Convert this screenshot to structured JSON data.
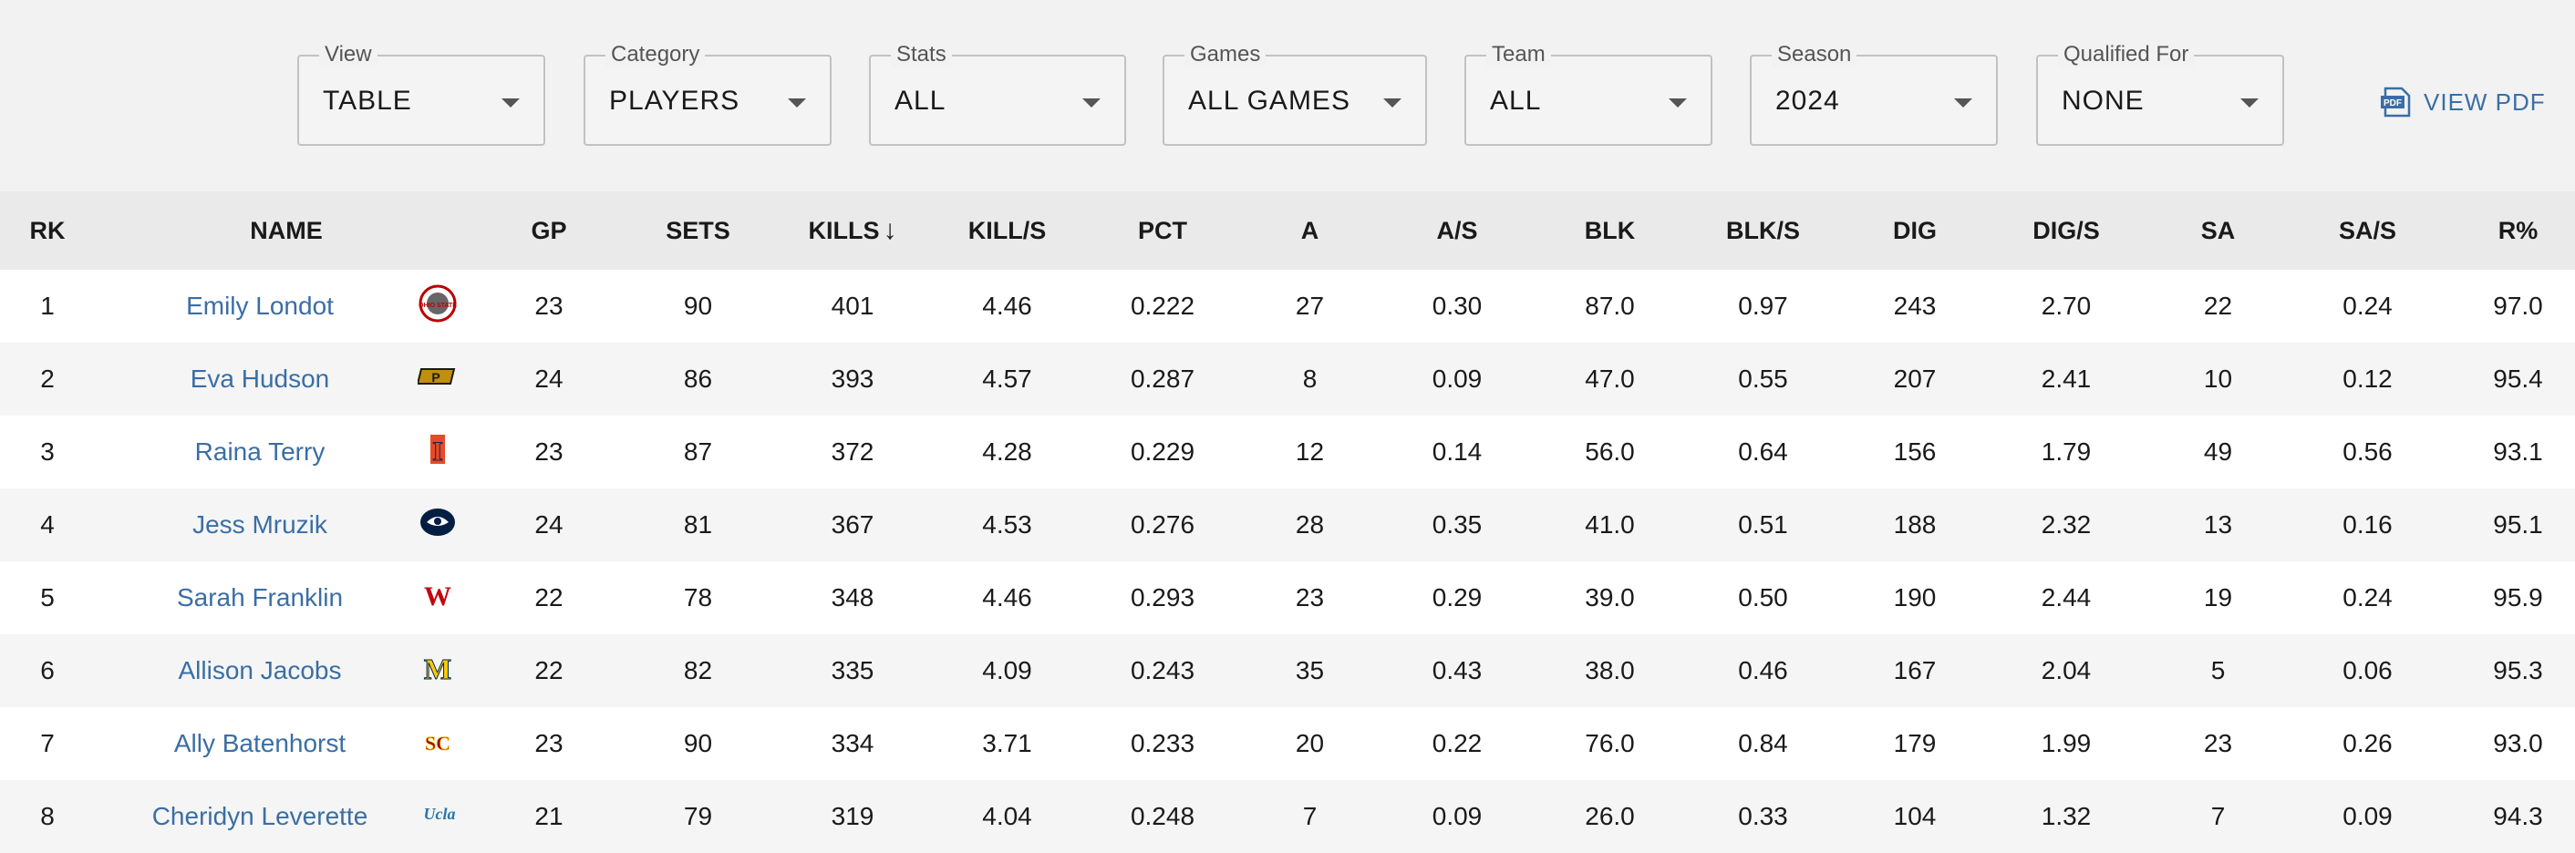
{
  "filters": [
    {
      "label": "View",
      "value": "TABLE"
    },
    {
      "label": "Category",
      "value": "PLAYERS"
    },
    {
      "label": "Stats",
      "value": "ALL"
    },
    {
      "label": "Games",
      "value": "ALL GAMES"
    },
    {
      "label": "Team",
      "value": "ALL"
    },
    {
      "label": "Season",
      "value": "2024"
    },
    {
      "label": "Qualified For",
      "value": "NONE"
    }
  ],
  "view_pdf": {
    "label": "VIEW PDF",
    "icon": "pdf-icon",
    "icon_text": "PDF"
  },
  "table": {
    "headers": {
      "rk": "RK",
      "name": "NAME",
      "gp": "GP",
      "sets": "SETS",
      "kills": "KILLS",
      "kill_s": "KILL/S",
      "pct": "PCT",
      "a": "A",
      "a_s": "A/S",
      "blk": "BLK",
      "blk_s": "BLK/S",
      "dig": "DIG",
      "dig_s": "DIG/S",
      "sa": "SA",
      "sa_s": "SA/S",
      "r_pct": "R%"
    },
    "sort": {
      "column": "KILLS",
      "direction": "descending",
      "icon": "arrow-down-icon"
    },
    "rows": [
      {
        "rk": "1",
        "name": "Emily Londot",
        "team_logo": "ohio-state-logo",
        "gp": "23",
        "sets": "90",
        "kills": "401",
        "kill_s": "4.46",
        "pct": "0.222",
        "a": "27",
        "a_s": "0.30",
        "blk": "87.0",
        "blk_s": "0.97",
        "dig": "243",
        "dig_s": "2.70",
        "sa": "22",
        "sa_s": "0.24",
        "r_pct": "97.0"
      },
      {
        "rk": "2",
        "name": "Eva Hudson",
        "team_logo": "purdue-logo",
        "gp": "24",
        "sets": "86",
        "kills": "393",
        "kill_s": "4.57",
        "pct": "0.287",
        "a": "8",
        "a_s": "0.09",
        "blk": "47.0",
        "blk_s": "0.55",
        "dig": "207",
        "dig_s": "2.41",
        "sa": "10",
        "sa_s": "0.12",
        "r_pct": "95.4"
      },
      {
        "rk": "3",
        "name": "Raina Terry",
        "team_logo": "illinois-logo",
        "gp": "23",
        "sets": "87",
        "kills": "372",
        "kill_s": "4.28",
        "pct": "0.229",
        "a": "12",
        "a_s": "0.14",
        "blk": "56.0",
        "blk_s": "0.64",
        "dig": "156",
        "dig_s": "1.79",
        "sa": "49",
        "sa_s": "0.56",
        "r_pct": "93.1"
      },
      {
        "rk": "4",
        "name": "Jess Mruzik",
        "team_logo": "penn-state-logo",
        "gp": "24",
        "sets": "81",
        "kills": "367",
        "kill_s": "4.53",
        "pct": "0.276",
        "a": "28",
        "a_s": "0.35",
        "blk": "41.0",
        "blk_s": "0.51",
        "dig": "188",
        "dig_s": "2.32",
        "sa": "13",
        "sa_s": "0.16",
        "r_pct": "95.1"
      },
      {
        "rk": "5",
        "name": "Sarah Franklin",
        "team_logo": "wisconsin-logo",
        "gp": "22",
        "sets": "78",
        "kills": "348",
        "kill_s": "4.46",
        "pct": "0.293",
        "a": "23",
        "a_s": "0.29",
        "blk": "39.0",
        "blk_s": "0.50",
        "dig": "190",
        "dig_s": "2.44",
        "sa": "19",
        "sa_s": "0.24",
        "r_pct": "95.9"
      },
      {
        "rk": "6",
        "name": "Allison Jacobs",
        "team_logo": "michigan-logo",
        "gp": "22",
        "sets": "82",
        "kills": "335",
        "kill_s": "4.09",
        "pct": "0.243",
        "a": "35",
        "a_s": "0.43",
        "blk": "38.0",
        "blk_s": "0.46",
        "dig": "167",
        "dig_s": "2.04",
        "sa": "5",
        "sa_s": "0.06",
        "r_pct": "95.3"
      },
      {
        "rk": "7",
        "name": "Ally Batenhorst",
        "team_logo": "usc-logo",
        "gp": "23",
        "sets": "90",
        "kills": "334",
        "kill_s": "3.71",
        "pct": "0.233",
        "a": "20",
        "a_s": "0.22",
        "blk": "76.0",
        "blk_s": "0.84",
        "dig": "179",
        "dig_s": "1.99",
        "sa": "23",
        "sa_s": "0.26",
        "r_pct": "93.0"
      },
      {
        "rk": "8",
        "name": "Cheridyn Leverette",
        "team_logo": "ucla-logo",
        "gp": "21",
        "sets": "79",
        "kills": "319",
        "kill_s": "4.04",
        "pct": "0.248",
        "a": "7",
        "a_s": "0.09",
        "blk": "26.0",
        "blk_s": "0.33",
        "dig": "104",
        "dig_s": "1.32",
        "sa": "7",
        "sa_s": "0.09",
        "r_pct": "94.3"
      }
    ]
  },
  "logo_text": {
    "ohio-state-logo": "OHIO STATE",
    "purdue-logo": "P",
    "illinois-logo": "I",
    "penn-state-logo": "",
    "wisconsin-logo": "W",
    "michigan-logo": "M",
    "usc-logo": "SC",
    "ucla-logo": "Ucla"
  },
  "colors": {
    "link": "#3a6ea5",
    "active_tab": "#3b6fb5",
    "header_bg": "#eaeaea",
    "ohio_state": "#bb0000",
    "purdue": "#c28e0e",
    "illinois": "#e84a27",
    "penn_state": "#041e42",
    "wisconsin": "#c5050c",
    "michigan": "#ffcb05",
    "usc": "#990000",
    "ucla": "#2774ae"
  }
}
